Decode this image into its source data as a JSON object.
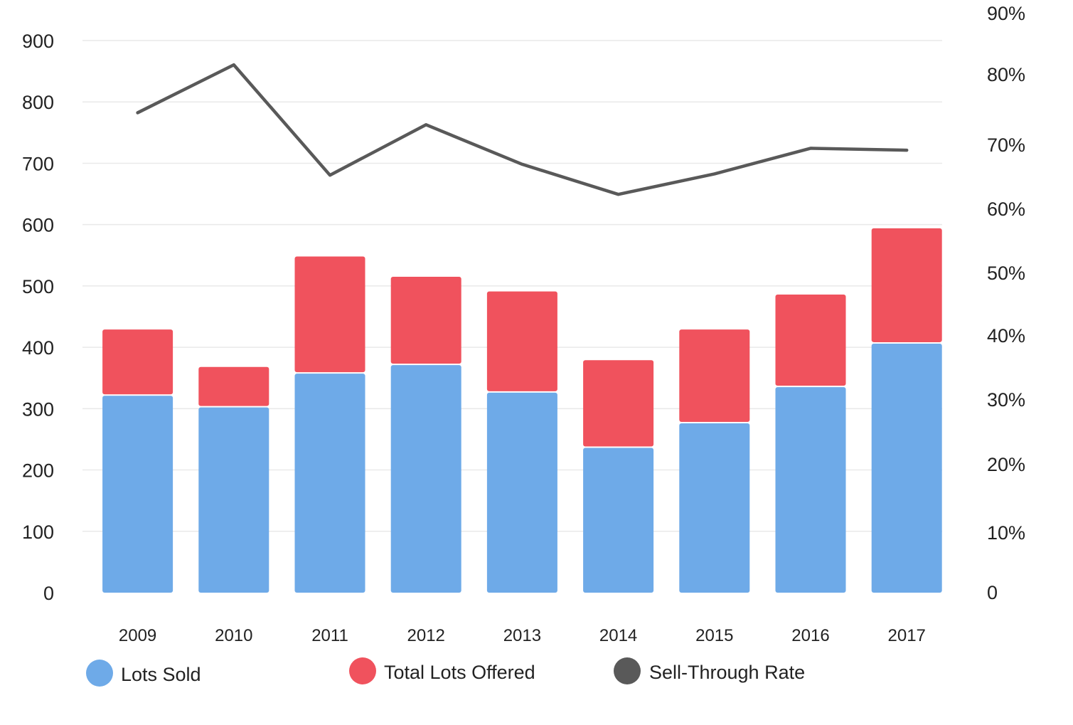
{
  "chart_data": {
    "type": "bar",
    "stacked": true,
    "categories": [
      "2009",
      "2010",
      "2011",
      "2012",
      "2013",
      "2014",
      "2015",
      "2016",
      "2017"
    ],
    "series": [
      {
        "name": "Lots Sold",
        "axis": "left",
        "type": "bar",
        "color": "#6eaae8",
        "values": [
          321,
          302,
          357,
          371,
          326,
          236,
          276,
          335,
          406
        ]
      },
      {
        "name": "Total Lots Offered",
        "axis": "left",
        "type": "bar",
        "color": "#f0525d",
        "values": [
          108,
          66,
          191,
          144,
          165,
          143,
          153,
          151,
          188
        ]
      },
      {
        "name": "Sell-Through Rate",
        "axis": "right",
        "type": "line",
        "color": "#595959",
        "values": [
          74.5,
          81.5,
          65.2,
          72.8,
          66.9,
          62.2,
          65.4,
          69.4,
          69.1
        ]
      }
    ],
    "y_left": {
      "ticks": [
        "0",
        "100",
        "200",
        "300",
        "400",
        "500",
        "600",
        "700",
        "800",
        "900"
      ],
      "range": [
        0,
        900
      ]
    },
    "y_right": {
      "ticks": [
        "0",
        "10%",
        "20%",
        "30%",
        "40%",
        "50%",
        "60%",
        "70%",
        "80%",
        "90%"
      ],
      "range": [
        0,
        90
      ]
    },
    "grid": true,
    "legend_position": "bottom-left",
    "xlabel": "",
    "ylabel": ""
  }
}
